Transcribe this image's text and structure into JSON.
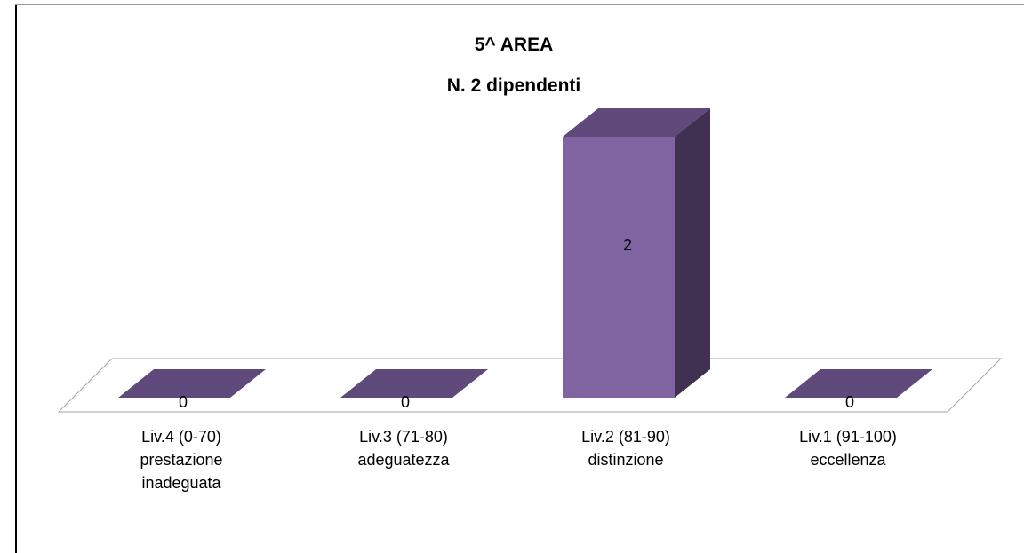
{
  "chart_data": {
    "type": "bar",
    "title": "5^ AREA",
    "subtitle": "N. 2 dipendenti",
    "categories": [
      [
        "Liv.4 (0-70)",
        "prestazione",
        "inadeguata"
      ],
      [
        "Liv.3 (71-80)",
        "adeguatezza"
      ],
      [
        "Liv.2 (81-90)",
        "distinzione"
      ],
      [
        "Liv.1 (91-100)",
        "eccellenza"
      ]
    ],
    "values": [
      0,
      0,
      2,
      0
    ],
    "data_labels": [
      "0",
      "0",
      "2",
      "0"
    ],
    "ylim": [
      0,
      2
    ],
    "grid": false,
    "legend": "none",
    "three_d": true,
    "colors": {
      "bar_front": "#8064a2",
      "bar_side": "#403152",
      "bar_top": "#604a7b",
      "floor_stroke": "#a6a6a6"
    }
  }
}
